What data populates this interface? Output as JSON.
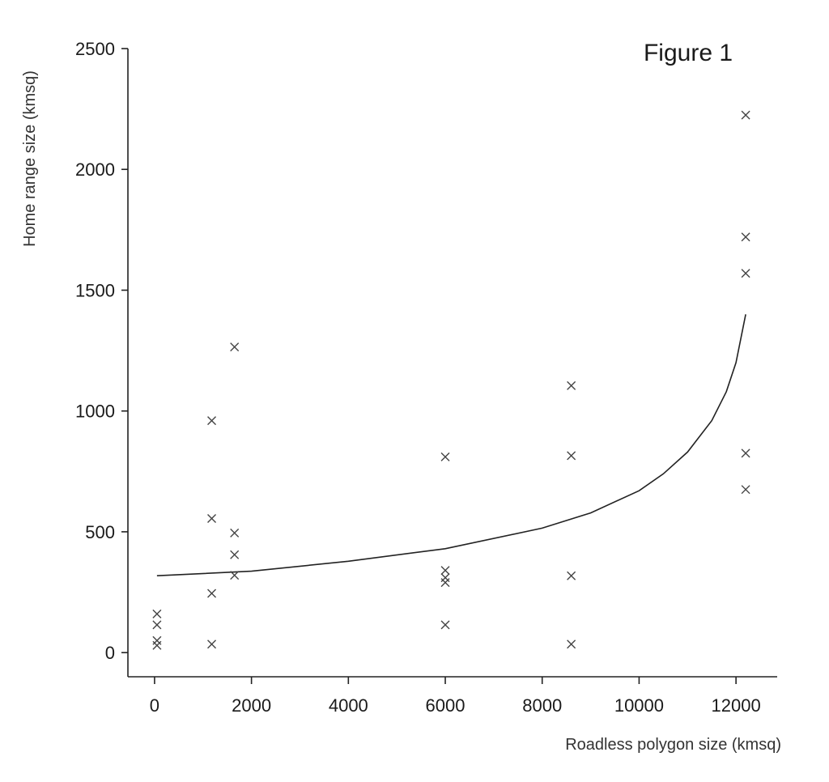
{
  "chart_data": {
    "type": "scatter",
    "title": "Figure 1",
    "xlabel": "Roadless polygon size (kmsq)",
    "ylabel": "Home range size (kmsq)",
    "xlim": [
      -550,
      12850
    ],
    "ylim": [
      -100,
      2500
    ],
    "xticks": [
      0,
      2000,
      4000,
      6000,
      8000,
      10000,
      12000
    ],
    "yticks": [
      0,
      500,
      1000,
      1500,
      2000,
      2500
    ],
    "grid": false,
    "marker": "x",
    "points": [
      {
        "x": 50,
        "y": 160
      },
      {
        "x": 50,
        "y": 115
      },
      {
        "x": 50,
        "y": 50
      },
      {
        "x": 50,
        "y": 30
      },
      {
        "x": 1180,
        "y": 960
      },
      {
        "x": 1180,
        "y": 555
      },
      {
        "x": 1180,
        "y": 245
      },
      {
        "x": 1180,
        "y": 35
      },
      {
        "x": 1650,
        "y": 1265
      },
      {
        "x": 1650,
        "y": 495
      },
      {
        "x": 1650,
        "y": 405
      },
      {
        "x": 1650,
        "y": 320
      },
      {
        "x": 6000,
        "y": 810
      },
      {
        "x": 6000,
        "y": 340
      },
      {
        "x": 6000,
        "y": 310
      },
      {
        "x": 6000,
        "y": 290
      },
      {
        "x": 6000,
        "y": 115
      },
      {
        "x": 8600,
        "y": 1105
      },
      {
        "x": 8600,
        "y": 815
      },
      {
        "x": 8600,
        "y": 318
      },
      {
        "x": 8600,
        "y": 35
      },
      {
        "x": 12200,
        "y": 2225
      },
      {
        "x": 12200,
        "y": 1720
      },
      {
        "x": 12200,
        "y": 1570
      },
      {
        "x": 12200,
        "y": 825
      },
      {
        "x": 12200,
        "y": 675
      }
    ],
    "fit_curve": {
      "x": [
        50,
        2000,
        4000,
        6000,
        8000,
        9000,
        10000,
        10500,
        11000,
        11500,
        11800,
        12000,
        12200
      ],
      "y": [
        318,
        337,
        378,
        430,
        515,
        578,
        670,
        740,
        830,
        960,
        1080,
        1200,
        1400
      ]
    }
  }
}
